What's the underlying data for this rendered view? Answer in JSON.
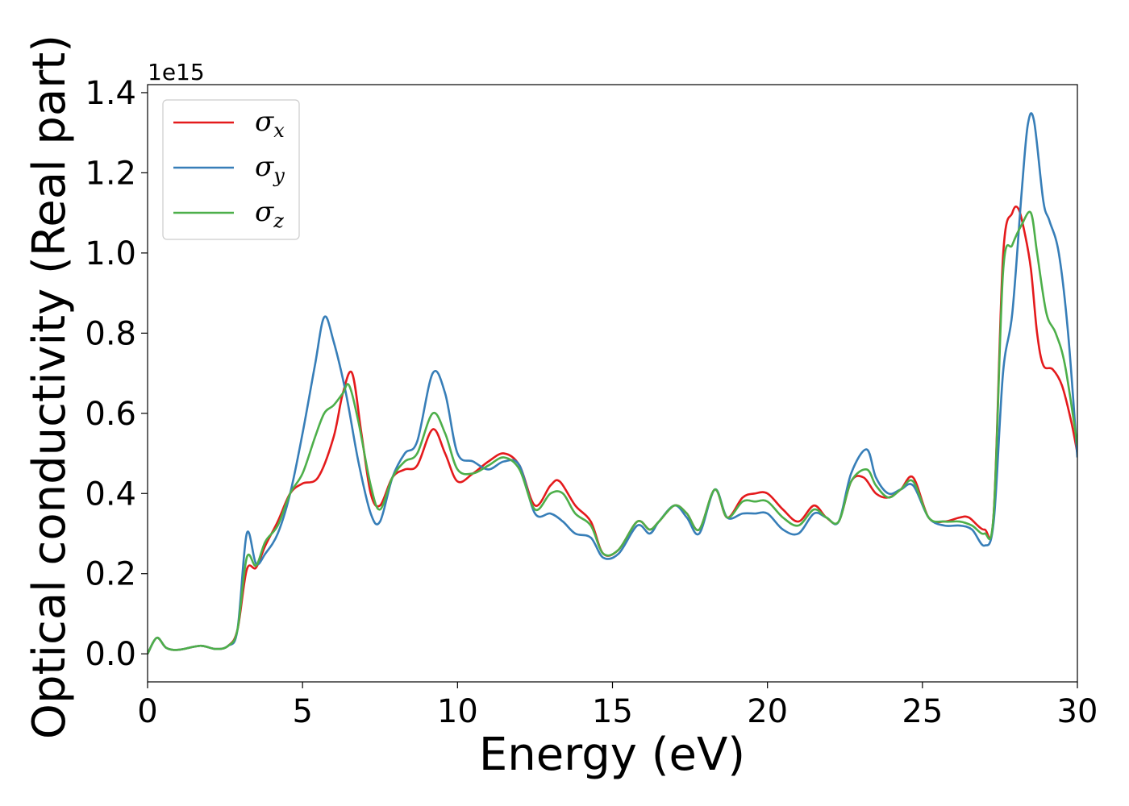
{
  "chart_data": {
    "type": "line",
    "xlabel": "Energy (eV)",
    "ylabel": "Optical conductivity (Real part)",
    "y_offset_text": "1e15",
    "xlim": [
      0,
      30
    ],
    "ylim": [
      -0.07,
      1.42
    ],
    "y_scale_factor": "1e15",
    "xticks": [
      0,
      5,
      10,
      15,
      20,
      25,
      30
    ],
    "xtick_labels": [
      "0",
      "5",
      "10",
      "15",
      "20",
      "25",
      "30"
    ],
    "yticks": [
      0.0,
      0.2,
      0.4,
      0.6,
      0.8,
      1.0,
      1.2,
      1.4
    ],
    "ytick_labels": [
      "0.0",
      "0.2",
      "0.4",
      "0.6",
      "0.8",
      "1.0",
      "1.2",
      "1.4"
    ],
    "grid": false,
    "legend_position": "top-left",
    "series": [
      {
        "name": "σ",
        "subscript": "x",
        "color": "#e41a1c",
        "x": [
          0,
          0.3,
          0.6,
          1,
          1.7,
          2.2,
          2.6,
          2.9,
          3.2,
          3.5,
          3.8,
          4.2,
          4.6,
          5.0,
          5.5,
          6.0,
          6.3,
          6.6,
          6.9,
          7.2,
          7.5,
          7.9,
          8.3,
          8.7,
          9.2,
          9.6,
          10.0,
          10.5,
          11.0,
          11.5,
          12.0,
          12.5,
          13.0,
          13.3,
          13.8,
          14.3,
          14.7,
          15.2,
          15.8,
          16.2,
          16.5,
          17.0,
          17.4,
          17.8,
          18.3,
          18.7,
          19.2,
          19.6,
          20.0,
          20.5,
          21.0,
          21.5,
          21.9,
          22.3,
          22.7,
          23.1,
          23.5,
          23.9,
          24.3,
          24.7,
          25.2,
          25.7,
          26.2,
          26.5,
          27.0,
          27.3,
          27.6,
          27.9,
          28.1,
          28.3,
          28.5,
          28.7,
          28.9,
          29.2,
          29.5,
          29.8,
          30.0
        ],
        "y": [
          0.0,
          0.04,
          0.015,
          0.01,
          0.02,
          0.012,
          0.02,
          0.06,
          0.21,
          0.215,
          0.27,
          0.33,
          0.4,
          0.425,
          0.44,
          0.54,
          0.65,
          0.7,
          0.55,
          0.4,
          0.37,
          0.44,
          0.46,
          0.47,
          0.56,
          0.5,
          0.43,
          0.45,
          0.48,
          0.5,
          0.47,
          0.37,
          0.42,
          0.43,
          0.37,
          0.33,
          0.25,
          0.26,
          0.33,
          0.31,
          0.33,
          0.37,
          0.35,
          0.31,
          0.41,
          0.34,
          0.39,
          0.4,
          0.4,
          0.36,
          0.33,
          0.37,
          0.34,
          0.33,
          0.43,
          0.44,
          0.4,
          0.39,
          0.41,
          0.44,
          0.34,
          0.33,
          0.34,
          0.34,
          0.31,
          0.35,
          0.99,
          1.1,
          1.11,
          1.05,
          0.96,
          0.8,
          0.72,
          0.71,
          0.67,
          0.58,
          0.5
        ]
      },
      {
        "name": "σ",
        "subscript": "y",
        "color": "#377eb8",
        "x": [
          0,
          0.3,
          0.6,
          1,
          1.7,
          2.2,
          2.6,
          2.9,
          3.2,
          3.5,
          3.8,
          4.2,
          4.6,
          5.0,
          5.4,
          5.7,
          6.0,
          6.4,
          6.8,
          7.2,
          7.5,
          7.9,
          8.3,
          8.7,
          9.2,
          9.6,
          10.0,
          10.5,
          11.0,
          11.5,
          12.0,
          12.5,
          13.0,
          13.4,
          13.8,
          14.3,
          14.7,
          15.2,
          15.8,
          16.2,
          16.5,
          17.0,
          17.4,
          17.8,
          18.3,
          18.7,
          19.2,
          19.6,
          20.0,
          20.5,
          21.0,
          21.5,
          21.9,
          22.3,
          22.7,
          23.2,
          23.5,
          23.9,
          24.3,
          24.7,
          25.2,
          25.7,
          26.2,
          26.6,
          27.0,
          27.3,
          27.6,
          27.9,
          28.2,
          28.4,
          28.6,
          28.9,
          29.1,
          29.4,
          29.7,
          30.0
        ],
        "y": [
          0.0,
          0.04,
          0.015,
          0.01,
          0.02,
          0.012,
          0.02,
          0.06,
          0.3,
          0.225,
          0.25,
          0.3,
          0.4,
          0.55,
          0.72,
          0.84,
          0.78,
          0.65,
          0.48,
          0.35,
          0.33,
          0.44,
          0.5,
          0.53,
          0.7,
          0.65,
          0.5,
          0.48,
          0.46,
          0.48,
          0.47,
          0.35,
          0.35,
          0.33,
          0.3,
          0.29,
          0.24,
          0.25,
          0.32,
          0.3,
          0.33,
          0.37,
          0.34,
          0.3,
          0.41,
          0.34,
          0.35,
          0.35,
          0.35,
          0.31,
          0.3,
          0.35,
          0.34,
          0.33,
          0.45,
          0.51,
          0.44,
          0.4,
          0.41,
          0.42,
          0.34,
          0.32,
          0.32,
          0.31,
          0.27,
          0.33,
          0.7,
          0.85,
          1.15,
          1.32,
          1.33,
          1.13,
          1.08,
          1.0,
          0.8,
          0.49
        ]
      },
      {
        "name": "σ",
        "subscript": "z",
        "color": "#4daf4a",
        "x": [
          0,
          0.3,
          0.6,
          1,
          1.7,
          2.2,
          2.6,
          2.9,
          3.2,
          3.5,
          3.8,
          4.2,
          4.6,
          5.0,
          5.4,
          5.7,
          6.0,
          6.3,
          6.5,
          6.8,
          7.2,
          7.5,
          7.9,
          8.3,
          8.7,
          9.2,
          9.6,
          10.0,
          10.5,
          11.0,
          11.5,
          12.0,
          12.5,
          13.0,
          13.4,
          13.8,
          14.3,
          14.7,
          15.2,
          15.8,
          16.2,
          16.5,
          17.0,
          17.4,
          17.8,
          18.3,
          18.7,
          19.2,
          19.6,
          20.0,
          20.5,
          21.0,
          21.5,
          21.9,
          22.3,
          22.7,
          23.2,
          23.5,
          23.9,
          24.3,
          24.7,
          25.2,
          25.7,
          26.2,
          26.6,
          27.0,
          27.3,
          27.6,
          27.9,
          28.2,
          28.5,
          28.7,
          29.0,
          29.3,
          29.6,
          30.0
        ],
        "y": [
          0.0,
          0.04,
          0.015,
          0.01,
          0.02,
          0.012,
          0.02,
          0.06,
          0.24,
          0.22,
          0.28,
          0.32,
          0.4,
          0.45,
          0.54,
          0.6,
          0.62,
          0.65,
          0.67,
          0.58,
          0.42,
          0.36,
          0.44,
          0.48,
          0.5,
          0.6,
          0.55,
          0.46,
          0.45,
          0.47,
          0.49,
          0.46,
          0.36,
          0.4,
          0.4,
          0.35,
          0.32,
          0.25,
          0.26,
          0.33,
          0.31,
          0.33,
          0.37,
          0.35,
          0.31,
          0.41,
          0.34,
          0.38,
          0.38,
          0.38,
          0.34,
          0.32,
          0.36,
          0.34,
          0.33,
          0.43,
          0.46,
          0.42,
          0.39,
          0.41,
          0.43,
          0.34,
          0.33,
          0.33,
          0.32,
          0.3,
          0.35,
          0.95,
          1.02,
          1.07,
          1.1,
          1.0,
          0.85,
          0.8,
          0.72,
          0.52
        ]
      }
    ]
  }
}
